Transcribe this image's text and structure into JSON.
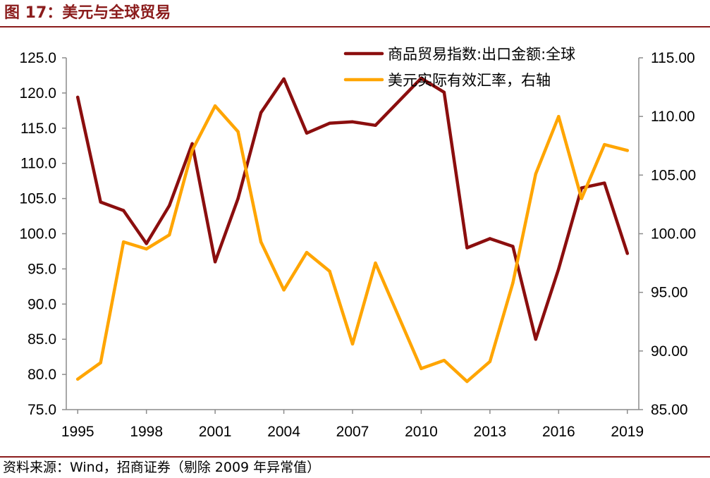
{
  "figure": {
    "title": "图 17：美元与全球贸易",
    "source": "资料来源：Wind，招商证券（剔除 2009 年异常值）"
  },
  "colors": {
    "brand": "#8b1c1c",
    "series_trade": "#8b0e0e",
    "series_usd": "#ffa500",
    "axis": "#8c8c8c"
  },
  "chart_data": {
    "type": "line",
    "x": [
      1995,
      1996,
      1997,
      1998,
      1999,
      2000,
      2001,
      2002,
      2003,
      2004,
      2005,
      2006,
      2007,
      2008,
      2010,
      2011,
      2012,
      2013,
      2014,
      2015,
      2016,
      2017,
      2018,
      2019
    ],
    "x_ticks": [
      "1995",
      "1998",
      "2001",
      "2004",
      "2007",
      "2010",
      "2013",
      "2016",
      "2019"
    ],
    "y_left": {
      "range": [
        75,
        125
      ],
      "step": 5,
      "tick_labels": [
        "75.0",
        "80.0",
        "85.0",
        "90.0",
        "95.0",
        "100.0",
        "105.0",
        "110.0",
        "115.0",
        "120.0",
        "125.0"
      ]
    },
    "y_right": {
      "range": [
        85,
        115
      ],
      "step": 5,
      "tick_labels": [
        "85.00",
        "90.00",
        "95.00",
        "100.00",
        "105.00",
        "110.00",
        "115.00"
      ]
    },
    "series": [
      {
        "name": "商品贸易指数:出口金额:全球",
        "axis": "left",
        "values": [
          119.4,
          104.5,
          103.3,
          98.6,
          104.0,
          112.8,
          96.0,
          105.0,
          117.2,
          122.0,
          114.3,
          115.7,
          115.9,
          115.4,
          122.1,
          120.1,
          98.0,
          99.3,
          98.2,
          85.0,
          95.0,
          106.5,
          107.2,
          97.2
        ]
      },
      {
        "name": "美元实际有效汇率，右轴",
        "axis": "right",
        "values": [
          87.6,
          89.0,
          99.3,
          98.7,
          99.9,
          107.1,
          110.9,
          108.7,
          99.3,
          95.2,
          98.4,
          96.8,
          90.6,
          97.5,
          88.5,
          89.2,
          87.4,
          89.1,
          95.8,
          105.1,
          110.0,
          103.0,
          107.6,
          107.1
        ]
      }
    ],
    "grid": false,
    "legend_position": "top-right"
  }
}
